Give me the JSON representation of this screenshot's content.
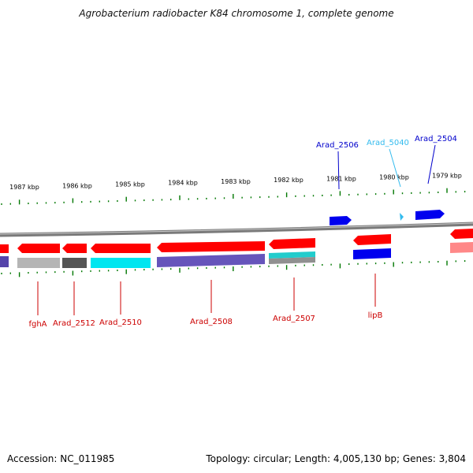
{
  "title": "Agrobacterium radiobacter K84 chromosome 1, complete genome",
  "footer": {
    "accession": "Accession: NC_011985",
    "summary": "Topology: circular; Length: 4,005,130 bp; Genes: 3,804"
  },
  "colors": {
    "forward_gene": "#ff0000",
    "reverse_gene": "#0000dd",
    "cyan_feature": "#00e0f0",
    "purple_feature": "#6655bb",
    "gray_feature": "#a0a0a0",
    "dark_feature": "#555555",
    "tick_green": "#007700",
    "backbone": "#888888"
  },
  "chart_data": {
    "type": "genome_map",
    "scale_unit": "kbp",
    "scale_labels": [
      "1987 kbp",
      "1986 kbp",
      "1985 kbp",
      "1984 kbp",
      "1983 kbp",
      "1982 kbp",
      "1981 kbp",
      "1980 kbp",
      "1979 kbp"
    ],
    "top_labels": [
      {
        "text": "Arad_2506",
        "color": "#0000cc"
      },
      {
        "text": "Arad_5040",
        "color": "#33bbee"
      },
      {
        "text": "Arad_2504",
        "color": "#0000cc"
      }
    ],
    "bottom_labels": [
      {
        "text": "fghA",
        "color": "#cc0000"
      },
      {
        "text": "Arad_2512",
        "color": "#cc0000"
      },
      {
        "text": "Arad_2510",
        "color": "#cc0000"
      },
      {
        "text": "Arad_2508",
        "color": "#cc0000"
      },
      {
        "text": "Arad_2507",
        "color": "#cc0000"
      },
      {
        "text": "lipB",
        "color": "#cc0000"
      }
    ]
  }
}
